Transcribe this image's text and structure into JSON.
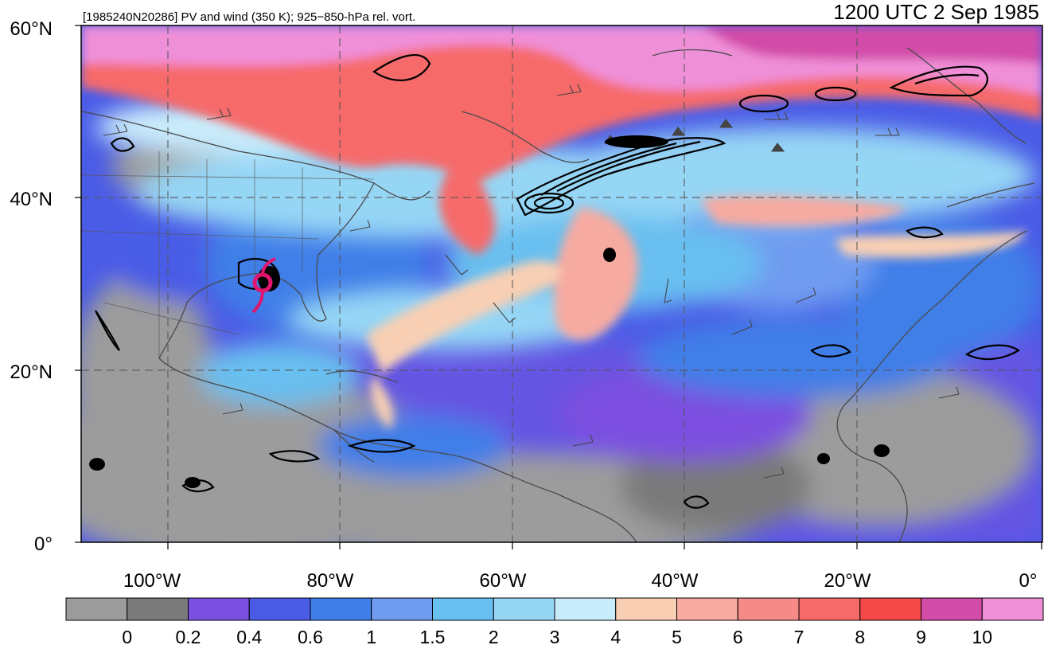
{
  "header": {
    "left_title": "[1985240N20286] PV and wind (350 K); 925−850-hPa rel. vort.",
    "right_title": "1200 UTC 2 Sep 1985"
  },
  "axes": {
    "lat_labels": [
      "60°N",
      "40°N",
      "20°N",
      "0°"
    ],
    "lon_labels": [
      "100°W",
      "80°W",
      "60°W",
      "40°W",
      "20°W",
      "0°"
    ]
  },
  "colorbar": {
    "colors": [
      "#9c9c9c",
      "#7a7a7a",
      "#7b4fe0",
      "#4a5be6",
      "#3f7ee8",
      "#6f9cf0",
      "#68bff0",
      "#96d6f5",
      "#c9ecfb",
      "#f8cfb3",
      "#f7aaa0",
      "#f68a86",
      "#f66a6a",
      "#f54848",
      "#d24ca8",
      "#ef8fd8"
    ],
    "tick_labels": [
      "0",
      "0.2",
      "0.4",
      "0.6",
      "1",
      "1.5",
      "2",
      "3",
      "4",
      "5",
      "6",
      "7",
      "8",
      "9",
      "10"
    ]
  },
  "storm_symbol": "hurricane-icon",
  "storm_color": "#e0166e"
}
